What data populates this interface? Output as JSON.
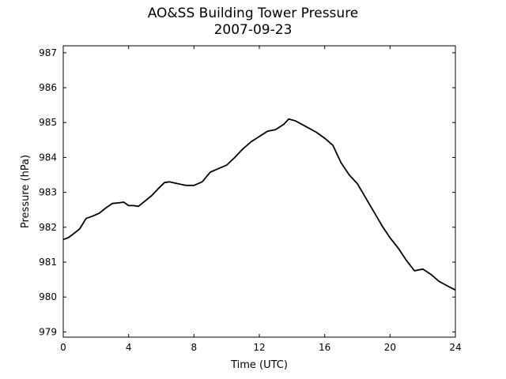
{
  "chart_data": {
    "type": "line",
    "title": "AO&SS Building Tower Pressure",
    "subtitle": "2007-09-23",
    "xlabel": "Time (UTC)",
    "ylabel": "Pressure (hPa)",
    "xlim": [
      0,
      24
    ],
    "ylim": [
      978.85,
      987.2
    ],
    "xticks": [
      0,
      4,
      8,
      12,
      16,
      20,
      24
    ],
    "yticks": [
      979,
      980,
      981,
      982,
      983,
      984,
      985,
      986,
      987
    ],
    "grid": false,
    "series": [
      {
        "color": "#000000",
        "x": [
          0,
          0.3,
          0.6,
          1.0,
          1.4,
          1.8,
          2.2,
          2.6,
          3.0,
          3.4,
          3.7,
          4.0,
          4.3,
          4.6,
          5.0,
          5.4,
          5.8,
          6.2,
          6.5,
          7.0,
          7.5,
          8.0,
          8.5,
          9.0,
          9.5,
          10.0,
          10.5,
          11.0,
          11.5,
          12.0,
          12.5,
          13.0,
          13.5,
          13.8,
          14.2,
          14.6,
          15.0,
          15.5,
          16.0,
          16.5,
          17.0,
          17.5,
          18.0,
          18.5,
          19.0,
          19.5,
          20.0,
          20.5,
          21.0,
          21.5,
          22.0,
          22.5,
          23.0,
          23.5,
          24.0
        ],
        "y": [
          981.65,
          981.7,
          981.8,
          981.95,
          982.25,
          982.32,
          982.4,
          982.55,
          982.68,
          982.7,
          982.72,
          982.62,
          982.62,
          982.6,
          982.75,
          982.9,
          983.1,
          983.28,
          983.3,
          983.25,
          983.2,
          983.2,
          983.3,
          983.58,
          983.68,
          983.78,
          984.0,
          984.25,
          984.45,
          984.6,
          984.75,
          984.8,
          984.95,
          985.1,
          985.05,
          984.95,
          984.85,
          984.72,
          984.55,
          984.35,
          983.85,
          983.5,
          983.25,
          982.85,
          982.45,
          982.05,
          981.7,
          981.4,
          981.05,
          980.75,
          980.8,
          980.65,
          980.45,
          980.32,
          980.2
        ]
      }
    ]
  }
}
